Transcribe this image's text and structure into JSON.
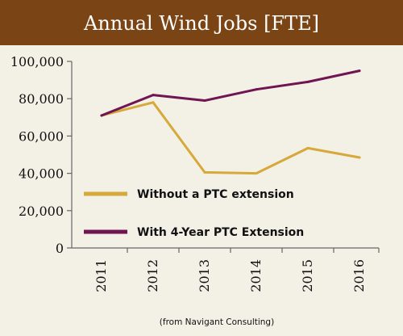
{
  "colors": {
    "banner_bg": "#7b4415",
    "banner_text": "#ffffff",
    "background": "#f3f0e6",
    "axis": "#666666",
    "text": "#111111"
  },
  "source_note": "(from Navigant Consulting)",
  "chart_data": {
    "type": "line",
    "title": "Annual Wind Jobs [FTE]",
    "xlabel": "",
    "ylabel": "",
    "x": [
      "2011",
      "2012",
      "2013",
      "2014",
      "2015",
      "2016"
    ],
    "ylim": [
      0,
      100000
    ],
    "yticks": [
      0,
      20000,
      40000,
      60000,
      80000,
      100000
    ],
    "ytick_labels": [
      "0",
      "20,000",
      "40,000",
      "60,000",
      "80,000",
      "100,000"
    ],
    "grid": false,
    "legend_position": "inside-lower-left",
    "series": [
      {
        "name": "Without a PTC extension",
        "color": "#d6a93a",
        "values": [
          71000,
          78000,
          40500,
          40000,
          53500,
          48500
        ]
      },
      {
        "name": "With 4-Year PTC Extension",
        "color": "#6e1552",
        "values": [
          71000,
          82000,
          79000,
          85000,
          89000,
          95000
        ]
      }
    ]
  }
}
